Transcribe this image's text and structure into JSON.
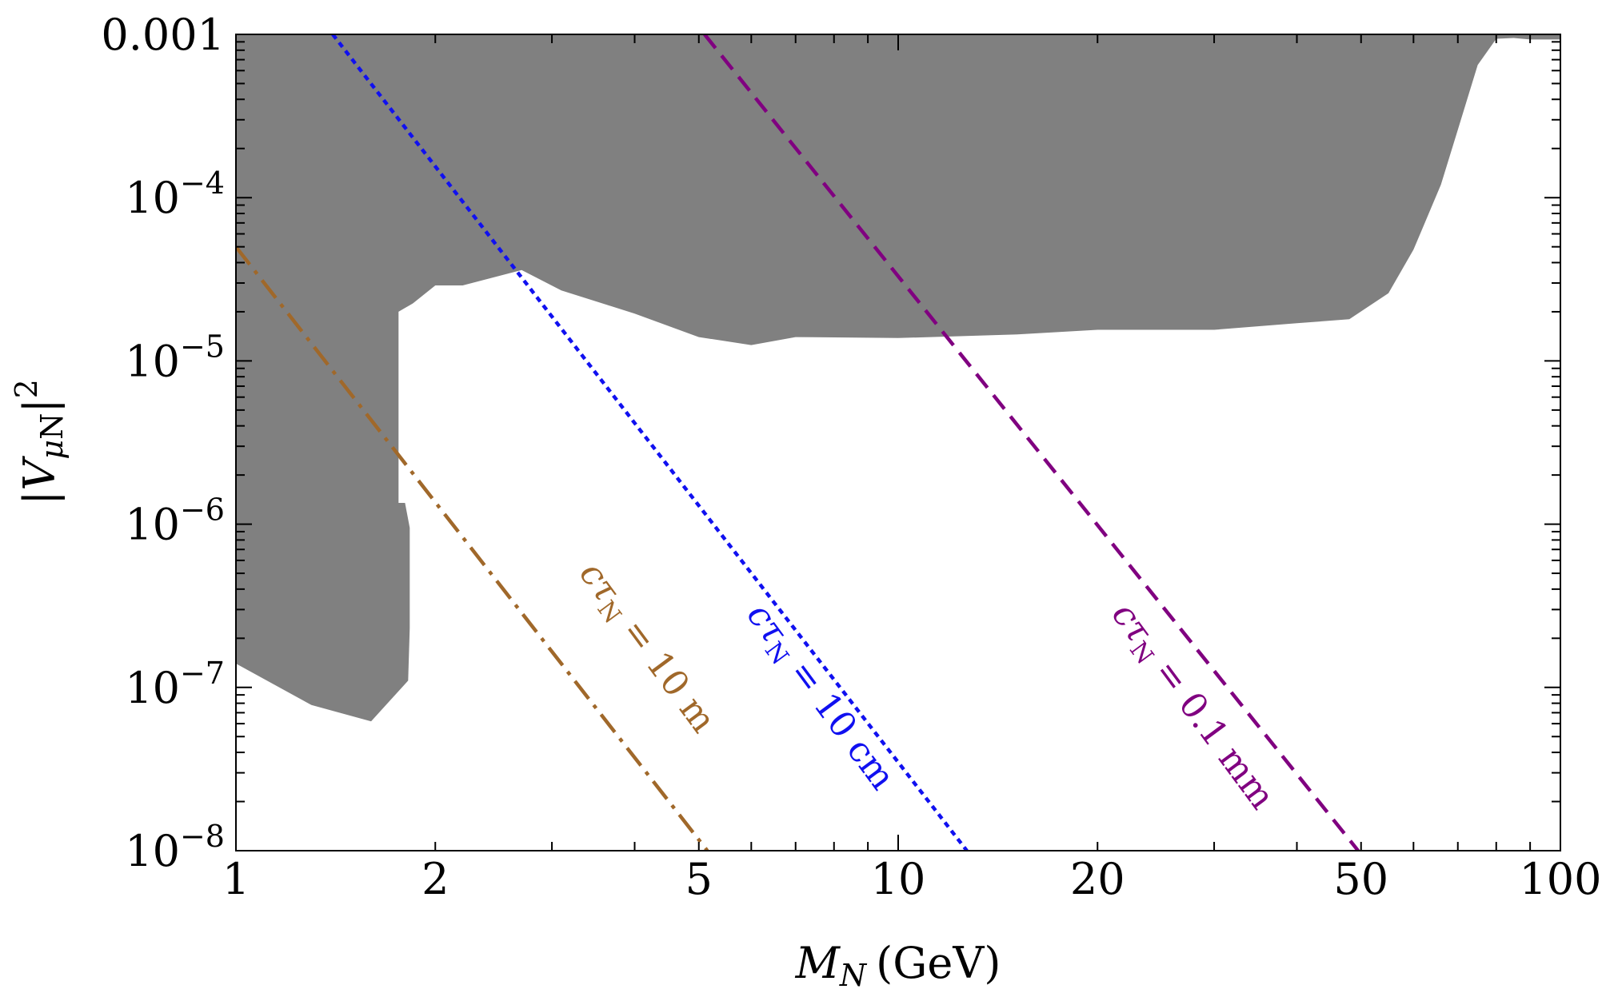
{
  "chart_data": {
    "type": "line",
    "title": "",
    "xlabel": {
      "var": "M",
      "sub": "N",
      "unit": "(GeV)"
    },
    "ylabel": {
      "var": "V",
      "sub_greek": "μ",
      "sub": "N",
      "exp": "2"
    },
    "x_scale": "log",
    "y_scale": "log",
    "xlim": [
      1,
      100
    ],
    "ylim": [
      1e-08,
      0.001
    ],
    "x_ticks": [
      {
        "value": 1,
        "label": "1"
      },
      {
        "value": 2,
        "label": "2"
      },
      {
        "value": 5,
        "label": "5"
      },
      {
        "value": 10,
        "label": "10"
      },
      {
        "value": 20,
        "label": "20"
      },
      {
        "value": 50,
        "label": "50"
      },
      {
        "value": 100,
        "label": "100"
      }
    ],
    "y_ticks": [
      {
        "value": 0.001,
        "mant": "0.001",
        "exp": ""
      },
      {
        "value": 0.0001,
        "mant": "10",
        "exp": "−4"
      },
      {
        "value": 1e-05,
        "mant": "10",
        "exp": "−5"
      },
      {
        "value": 1e-06,
        "mant": "10",
        "exp": "−6"
      },
      {
        "value": 1e-07,
        "mant": "10",
        "exp": "−7"
      },
      {
        "value": 1e-08,
        "mant": "10",
        "exp": "−8"
      }
    ],
    "grid": false,
    "excluded_region": {
      "color": "#808080",
      "boundary": [
        [
          1.0,
          1.4e-07
        ],
        [
          1.3,
          7.8e-08
        ],
        [
          1.6,
          6.2e-08
        ],
        [
          1.82,
          1.1e-07
        ],
        [
          1.83,
          2.3e-07
        ],
        [
          1.83,
          9.5e-07
        ],
        [
          1.8,
          1.35e-06
        ],
        [
          1.76,
          1.35e-06
        ],
        [
          1.76,
          2e-05
        ],
        [
          1.85,
          2.25e-05
        ],
        [
          2.0,
          2.9e-05
        ],
        [
          2.2,
          2.9e-05
        ],
        [
          2.7,
          3.6e-05
        ],
        [
          3.1,
          2.7e-05
        ],
        [
          4.0,
          1.95e-05
        ],
        [
          5.0,
          1.4e-05
        ],
        [
          6.0,
          1.25e-05
        ],
        [
          7.0,
          1.4e-05
        ],
        [
          10.0,
          1.38e-05
        ],
        [
          15.0,
          1.45e-05
        ],
        [
          20.0,
          1.55e-05
        ],
        [
          30.0,
          1.55e-05
        ],
        [
          40.0,
          1.7e-05
        ],
        [
          48.0,
          1.8e-05
        ],
        [
          55.0,
          2.6e-05
        ],
        [
          60.0,
          4.8e-05
        ],
        [
          66.0,
          0.00012
        ],
        [
          70.0,
          0.00026
        ],
        [
          75.0,
          0.00065
        ],
        [
          80.0,
          0.00094
        ],
        [
          85.0,
          0.00095
        ],
        [
          90.0,
          0.00093
        ],
        [
          100.0,
          0.00093
        ],
        [
          100.0,
          0.001
        ],
        [
          1.0,
          0.001
        ]
      ]
    },
    "series": [
      {
        "label": {
          "pre": "cτ",
          "sub": "N",
          "post": " = 10 m"
        },
        "color": "#A0682A",
        "dash": "28 10 5 10",
        "points": [
          [
            1.0,
            5e-05
          ],
          [
            5.15,
            1e-08
          ]
        ],
        "label_at": [
          4.05,
          1.6e-07
        ],
        "label_angle": 53.5
      },
      {
        "label": {
          "pre": "cτ",
          "sub": "N",
          "post": " = 10 cm"
        },
        "color": "#1010F0",
        "dash": "7 6",
        "points": [
          [
            1.4,
            0.001
          ],
          [
            12.7,
            1e-08
          ]
        ],
        "label_at": [
          7.4,
          8e-08
        ],
        "label_angle": 53.5
      },
      {
        "label": {
          "pre": "cτ",
          "sub": "N",
          "post": " = 0.1 mm"
        },
        "color": "#800080",
        "dash": "22 12",
        "points": [
          [
            5.1,
            0.001
          ],
          [
            49.5,
            1e-08
          ]
        ],
        "label_at": [
          27.0,
          7e-08
        ],
        "label_angle": 53.5
      }
    ]
  }
}
